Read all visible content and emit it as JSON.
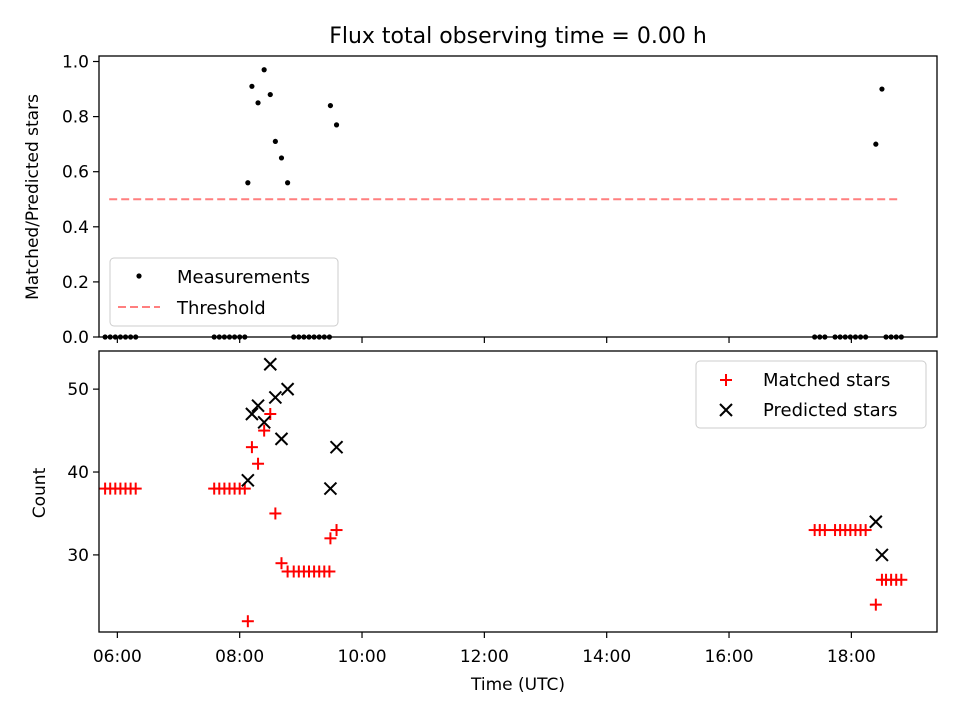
{
  "chart_data": [
    {
      "panel": "top",
      "type": "scatter",
      "title": "Flux total observing time = 0.00 h",
      "ylabel": "Matched/Predicted stars",
      "xlim": [
        "05:42",
        "19:24"
      ],
      "ylim": [
        0.0,
        1.02
      ],
      "yticks": [
        0.0,
        0.2,
        0.4,
        0.6,
        0.8,
        1.0
      ],
      "ytick_labels": [
        "0.0",
        "0.2",
        "0.4",
        "0.6",
        "0.8",
        "1.0"
      ],
      "legend_position": "lower-left",
      "series": [
        {
          "name": "Measurements",
          "color": "#000000",
          "marker": "dot",
          "points": [
            [
              "05:48",
              0.0
            ],
            [
              "05:53",
              0.0
            ],
            [
              "05:58",
              0.0
            ],
            [
              "06:03",
              0.0
            ],
            [
              "06:08",
              0.0
            ],
            [
              "06:13",
              0.0
            ],
            [
              "06:18",
              0.0
            ],
            [
              "07:35",
              0.0
            ],
            [
              "07:40",
              0.0
            ],
            [
              "07:45",
              0.0
            ],
            [
              "07:50",
              0.0
            ],
            [
              "07:55",
              0.0
            ],
            [
              "08:00",
              0.0
            ],
            [
              "08:05",
              0.0
            ],
            [
              "08:08",
              0.56
            ],
            [
              "08:12",
              0.91
            ],
            [
              "08:18",
              0.85
            ],
            [
              "08:24",
              0.97
            ],
            [
              "08:30",
              0.88
            ],
            [
              "08:35",
              0.71
            ],
            [
              "08:41",
              0.65
            ],
            [
              "08:47",
              0.56
            ],
            [
              "08:53",
              0.0
            ],
            [
              "08:58",
              0.0
            ],
            [
              "09:03",
              0.0
            ],
            [
              "09:08",
              0.0
            ],
            [
              "09:13",
              0.0
            ],
            [
              "09:18",
              0.0
            ],
            [
              "09:23",
              0.0
            ],
            [
              "09:28",
              0.0
            ],
            [
              "09:29",
              0.84
            ],
            [
              "09:35",
              0.77
            ],
            [
              "17:24",
              0.0
            ],
            [
              "17:29",
              0.0
            ],
            [
              "17:34",
              0.0
            ],
            [
              "17:44",
              0.0
            ],
            [
              "17:49",
              0.0
            ],
            [
              "17:54",
              0.0
            ],
            [
              "17:59",
              0.0
            ],
            [
              "18:04",
              0.0
            ],
            [
              "18:09",
              0.0
            ],
            [
              "18:14",
              0.0
            ],
            [
              "18:24",
              0.7
            ],
            [
              "18:30",
              0.9
            ],
            [
              "18:34",
              0.0
            ],
            [
              "18:39",
              0.0
            ],
            [
              "18:44",
              0.0
            ],
            [
              "18:49",
              0.0
            ]
          ]
        },
        {
          "name": "Threshold",
          "color": "#ff7f7f",
          "style": "dashed",
          "points": [
            [
              "05:52",
              0.5
            ],
            [
              "18:45",
              0.5
            ]
          ]
        }
      ]
    },
    {
      "panel": "bottom",
      "type": "scatter",
      "xlabel": "Time (UTC)",
      "ylabel": "Count",
      "xlim": [
        "05:42",
        "19:24"
      ],
      "ylim": [
        20.7,
        54.6
      ],
      "xticks": [
        "06:00",
        "08:00",
        "10:00",
        "12:00",
        "14:00",
        "16:00",
        "18:00"
      ],
      "yticks": [
        30,
        40,
        50
      ],
      "ytick_labels": [
        "30",
        "40",
        "50"
      ],
      "legend_position": "top-right",
      "series": [
        {
          "name": "Matched stars",
          "color": "#ff0000",
          "marker": "plus",
          "points": [
            [
              "05:48",
              38
            ],
            [
              "05:53",
              38
            ],
            [
              "05:58",
              38
            ],
            [
              "06:03",
              38
            ],
            [
              "06:08",
              38
            ],
            [
              "06:13",
              38
            ],
            [
              "06:18",
              38
            ],
            [
              "07:35",
              38
            ],
            [
              "07:40",
              38
            ],
            [
              "07:45",
              38
            ],
            [
              "07:50",
              38
            ],
            [
              "07:55",
              38
            ],
            [
              "08:00",
              38
            ],
            [
              "08:05",
              38
            ],
            [
              "08:08",
              22
            ],
            [
              "08:12",
              43
            ],
            [
              "08:18",
              41
            ],
            [
              "08:24",
              45
            ],
            [
              "08:30",
              47
            ],
            [
              "08:35",
              35
            ],
            [
              "08:41",
              29
            ],
            [
              "08:47",
              28
            ],
            [
              "08:53",
              28
            ],
            [
              "08:58",
              28
            ],
            [
              "09:03",
              28
            ],
            [
              "09:08",
              28
            ],
            [
              "09:13",
              28
            ],
            [
              "09:18",
              28
            ],
            [
              "09:23",
              28
            ],
            [
              "09:28",
              28
            ],
            [
              "09:29",
              32
            ],
            [
              "09:35",
              33
            ],
            [
              "17:24",
              33
            ],
            [
              "17:29",
              33
            ],
            [
              "17:34",
              33
            ],
            [
              "17:44",
              33
            ],
            [
              "17:49",
              33
            ],
            [
              "17:54",
              33
            ],
            [
              "17:59",
              33
            ],
            [
              "18:04",
              33
            ],
            [
              "18:09",
              33
            ],
            [
              "18:14",
              33
            ],
            [
              "18:24",
              24
            ],
            [
              "18:30",
              27
            ],
            [
              "18:34",
              27
            ],
            [
              "18:39",
              27
            ],
            [
              "18:44",
              27
            ],
            [
              "18:49",
              27
            ]
          ]
        },
        {
          "name": "Predicted stars",
          "color": "#000000",
          "marker": "x",
          "points": [
            [
              "08:08",
              39
            ],
            [
              "08:12",
              47
            ],
            [
              "08:18",
              48
            ],
            [
              "08:24",
              46
            ],
            [
              "08:30",
              53
            ],
            [
              "08:35",
              49
            ],
            [
              "08:41",
              44
            ],
            [
              "08:47",
              50
            ],
            [
              "09:29",
              38
            ],
            [
              "09:35",
              43
            ],
            [
              "18:24",
              34
            ],
            [
              "18:30",
              30
            ]
          ]
        }
      ]
    }
  ]
}
